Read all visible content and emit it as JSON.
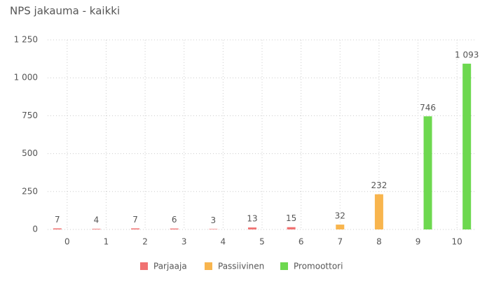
{
  "chart_data": {
    "type": "bar",
    "title": "NPS jakauma - kaikki",
    "categories": [
      "0",
      "1",
      "2",
      "3",
      "4",
      "5",
      "6",
      "7",
      "8",
      "9",
      "10"
    ],
    "series": [
      {
        "name": "Parjaaja",
        "color": "#f07272",
        "values": [
          7,
          4,
          7,
          6,
          3,
          13,
          15,
          null,
          null,
          null,
          null
        ]
      },
      {
        "name": "Passiivinen",
        "color": "#f8b54e",
        "values": [
          null,
          null,
          null,
          null,
          null,
          null,
          null,
          32,
          232,
          null,
          null
        ]
      },
      {
        "name": "Promoottori",
        "color": "#6dd84f",
        "values": [
          null,
          null,
          null,
          null,
          null,
          null,
          null,
          null,
          null,
          746,
          1093
        ],
        "value_labels": [
          null,
          null,
          null,
          null,
          null,
          null,
          null,
          null,
          null,
          "746",
          "1 093"
        ]
      }
    ],
    "ylim": [
      0,
      1250
    ],
    "yticks": [
      0,
      250,
      500,
      750,
      {
        "value": 1000,
        "label": "1 000"
      },
      {
        "value": 1250,
        "label": "1 250"
      }
    ],
    "grid": true
  }
}
